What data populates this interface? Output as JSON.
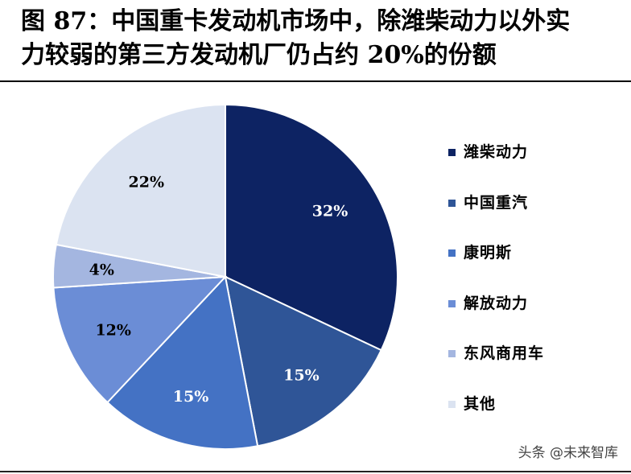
{
  "title": {
    "line1": "图 87：中国重卡发动机市场中，除潍柴动力以外实",
    "line2": "力较弱的第三方发动机厂仍占约 20%的份额"
  },
  "watermark": "头条 @未来智库",
  "chart_data": {
    "type": "pie",
    "slices": [
      {
        "name": "潍柴动力",
        "value": 32,
        "label": "32%",
        "color": "#0d2363"
      },
      {
        "name": "中国重汽",
        "value": 15,
        "label": "15%",
        "color": "#2f5597"
      },
      {
        "name": "康明斯",
        "value": 15,
        "label": "15%",
        "color": "#4472c4"
      },
      {
        "name": "解放动力",
        "value": 12,
        "label": "12%",
        "color": "#6b8dd6"
      },
      {
        "name": "东风商用车",
        "value": 4,
        "label": "4%",
        "color": "#a4b6e0"
      },
      {
        "name": "其他",
        "value": 22,
        "label": "22%",
        "color": "#dbe3f1"
      }
    ],
    "start_angle_deg": 0,
    "direction": "clockwise",
    "legend_position": "right"
  }
}
